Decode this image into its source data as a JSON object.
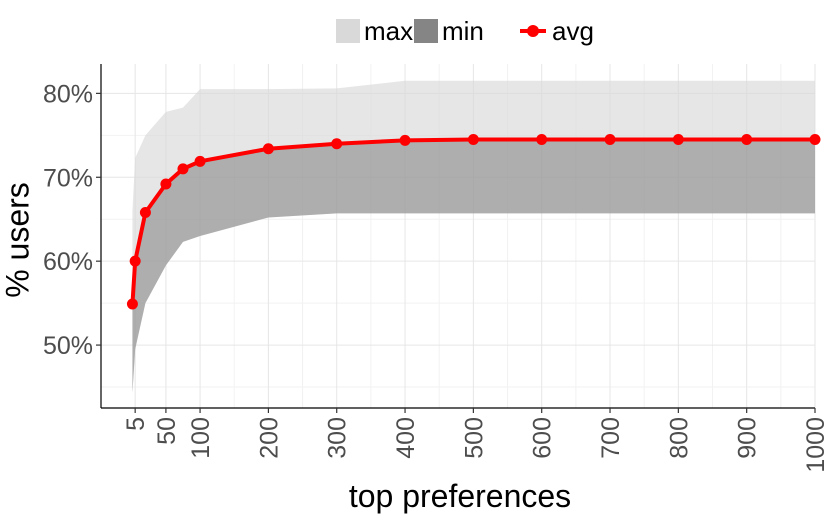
{
  "chart_data": {
    "type": "line",
    "xlabel": "top preferences",
    "ylabel": "% users",
    "x_ticks": [
      "5",
      "50",
      "100",
      "200",
      "300",
      "400",
      "500",
      "600",
      "700",
      "800",
      "900",
      "1000"
    ],
    "y_ticks": [
      "50%",
      "60%",
      "70%",
      "80%"
    ],
    "xlim": [
      -45,
      1000
    ],
    "ylim": [
      42.5,
      83.5
    ],
    "grid": true,
    "legend": {
      "position": "top",
      "labels": [
        "max",
        "min",
        "avg"
      ]
    },
    "x": [
      1,
      5,
      20,
      50,
      75,
      100,
      200,
      300,
      400,
      500,
      600,
      700,
      800,
      900,
      1000
    ],
    "series": [
      {
        "name": "max",
        "kind": "area",
        "color": "#d9d9d9",
        "values": [
          66,
          72.3,
          75.0,
          77.8,
          78.3,
          80.5,
          80.5,
          80.6,
          81.5,
          81.5,
          81.5,
          81.5,
          81.5,
          81.5,
          81.5
        ]
      },
      {
        "name": "min",
        "kind": "area",
        "color": "#7f7f7f",
        "values": [
          44.3,
          49.5,
          55.0,
          59.5,
          62.3,
          63.0,
          65.2,
          65.7,
          65.7,
          65.7,
          65.7,
          65.7,
          65.7,
          65.7,
          65.7
        ]
      },
      {
        "name": "avg",
        "kind": "line",
        "color": "#ff0000",
        "values": [
          54.9,
          60.0,
          65.8,
          69.2,
          71.0,
          71.9,
          73.4,
          74.0,
          74.4,
          74.5,
          74.5,
          74.5,
          74.5,
          74.5,
          74.5
        ]
      }
    ]
  }
}
